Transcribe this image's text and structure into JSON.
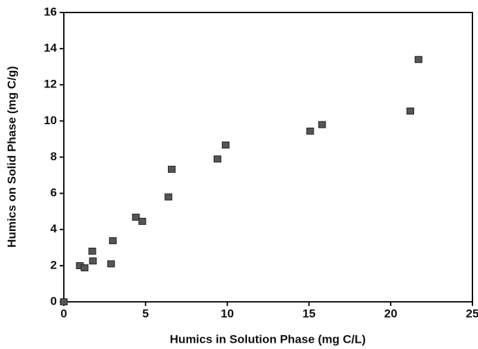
{
  "chart_data": {
    "type": "scatter",
    "x_label": "Humics in Solution Phase (mg C/L)",
    "y_label": "Humics on Solid Phase (mg C/g)",
    "x": [
      0,
      0.98,
      1.27,
      1.74,
      1.78,
      2.89,
      3.0,
      4.41,
      4.8,
      6.4,
      6.6,
      9.4,
      9.9,
      15.07,
      15.8,
      21.2,
      21.7
    ],
    "values": [
      0,
      2.0,
      1.88,
      2.8,
      2.26,
      2.1,
      3.38,
      4.68,
      4.45,
      5.8,
      7.33,
      7.9,
      8.67,
      9.44,
      9.8,
      10.55,
      13.4
    ],
    "color": "#555555",
    "xlim": [
      0,
      25
    ],
    "xticks": [
      0,
      5,
      10,
      15,
      20,
      25
    ],
    "ylim": [
      0,
      16
    ],
    "yticks": [
      0,
      2,
      4,
      6,
      8,
      10,
      12,
      14,
      16
    ]
  }
}
